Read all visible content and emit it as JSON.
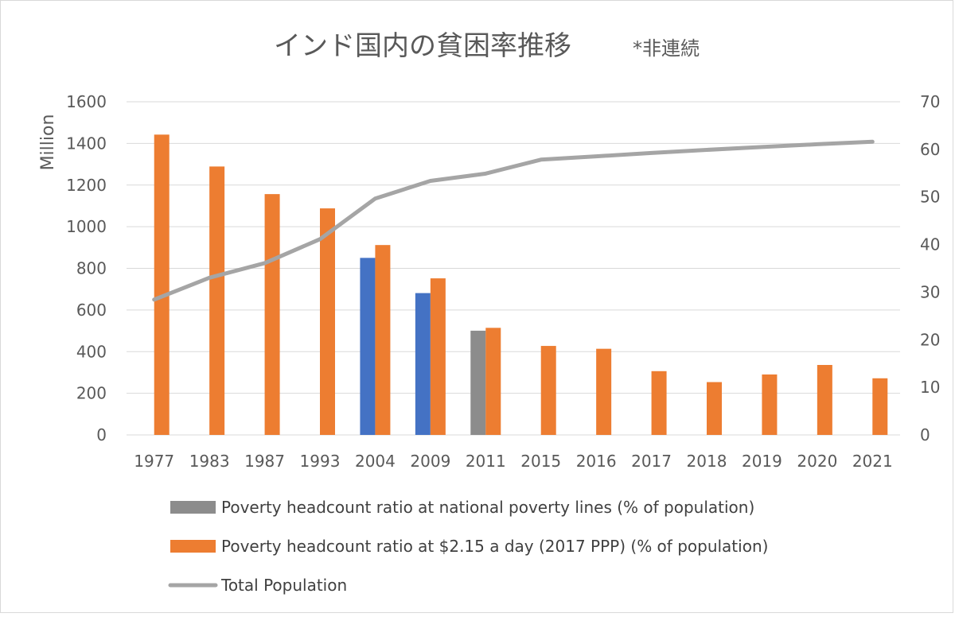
{
  "chart_data": {
    "type": "bar",
    "title": "インド国内の貧困率推移",
    "subtitle": "*非連続",
    "ylabel": "Million",
    "categories": [
      "1977",
      "1983",
      "1987",
      "1993",
      "2004",
      "2009",
      "2011",
      "2015",
      "2016",
      "2017",
      "2018",
      "2019",
      "2020",
      "2021"
    ],
    "y_left": {
      "range": [
        0,
        1600
      ],
      "ticks": [
        0,
        200,
        400,
        600,
        800,
        1000,
        1200,
        1400,
        1600
      ]
    },
    "y_right": {
      "range": [
        0,
        70
      ],
      "ticks": [
        0,
        10,
        20,
        30,
        40,
        50,
        60,
        70
      ]
    },
    "grid": true,
    "series": [
      {
        "name": "Poverty headcount ratio at national poverty lines (% of population)",
        "type": "bar",
        "axis": "right",
        "values": [
          null,
          null,
          null,
          null,
          37.2,
          29.8,
          21.9,
          null,
          null,
          null,
          null,
          null,
          null,
          null
        ],
        "colors": [
          null,
          null,
          null,
          null,
          "#4472c4",
          "#4472c4",
          "#8c8c8c",
          null,
          null,
          null,
          null,
          null,
          null,
          null
        ]
      },
      {
        "name": "Poverty headcount ratio at $2.15 a day (2017 PPP) (% of population)",
        "type": "bar",
        "axis": "right",
        "color": "#ed7d31",
        "values": [
          63.1,
          56.4,
          50.6,
          47.6,
          39.9,
          32.9,
          22.5,
          18.7,
          18.1,
          13.4,
          11.1,
          12.7,
          14.7,
          11.9
        ]
      },
      {
        "name": "Total Population",
        "type": "line",
        "axis": "left",
        "color": "#a5a5a5",
        "values": [
          650,
          755,
          825,
          940,
          1135,
          1220,
          1255,
          1322,
          1338,
          1354,
          1369,
          1383,
          1396,
          1408
        ]
      }
    ],
    "legend": {
      "position": "bottom",
      "entries": [
        {
          "label": "Poverty headcount ratio at national poverty lines (% of population)",
          "symbol": "bar",
          "color": "#8c8c8c"
        },
        {
          "label": "Poverty headcount ratio at $2.15 a day (2017 PPP) (% of population)",
          "symbol": "bar",
          "color": "#ed7d31"
        },
        {
          "label": "Total Population",
          "symbol": "line",
          "color": "#a5a5a5"
        }
      ]
    }
  }
}
